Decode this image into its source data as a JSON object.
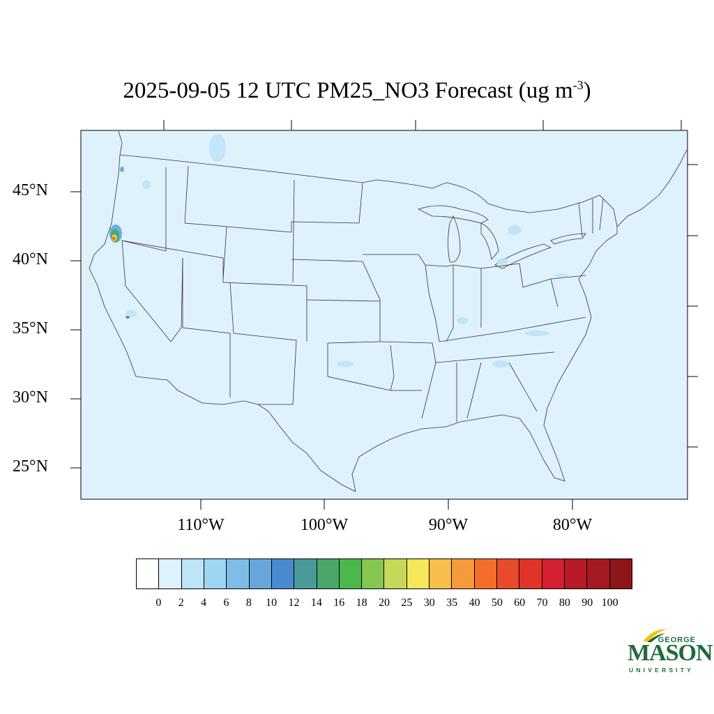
{
  "title": {
    "main": "2025-09-05 12 UTC PM25_NO3 Forecast (ug m",
    "superscript": "-3",
    "suffix": ")"
  },
  "map": {
    "ocean_color": "#dff1fb",
    "boundary_color": "#333333",
    "latitude_labels": [
      "45°N",
      "40°N",
      "35°N",
      "30°N",
      "25°N"
    ],
    "longitude_labels": [
      "110°W",
      "100°W",
      "90°W",
      "80°W"
    ],
    "hotspot_colors": [
      "#6aaedf",
      "#4aa66a",
      "#c5d85a",
      "#f6e65a",
      "#f79b3a",
      "#e94a2a"
    ]
  },
  "colorbar": {
    "colors": [
      "#ffffff",
      "#dff1fb",
      "#bde4f7",
      "#9dd6f3",
      "#7fbde6",
      "#66a6dc",
      "#4a8ad0",
      "#4a9a9a",
      "#4aa66a",
      "#4ab84a",
      "#86c54f",
      "#c5d85a",
      "#f6e65a",
      "#f7be4a",
      "#f79b3a",
      "#f46e2a",
      "#e94a2a",
      "#e0342a",
      "#d42030",
      "#b81a28",
      "#a51a22",
      "#8e1618"
    ],
    "labels": [
      "0",
      "2",
      "4",
      "6",
      "8",
      "10",
      "12",
      "14",
      "16",
      "18",
      "20",
      "25",
      "30",
      "35",
      "40",
      "50",
      "60",
      "70",
      "80",
      "90",
      "100"
    ]
  },
  "logo": {
    "line1": "GEORGE",
    "line2": "MASON",
    "line3": "UNIVERSITY",
    "color": "#1d6b3a",
    "accent": "#f2c200"
  }
}
